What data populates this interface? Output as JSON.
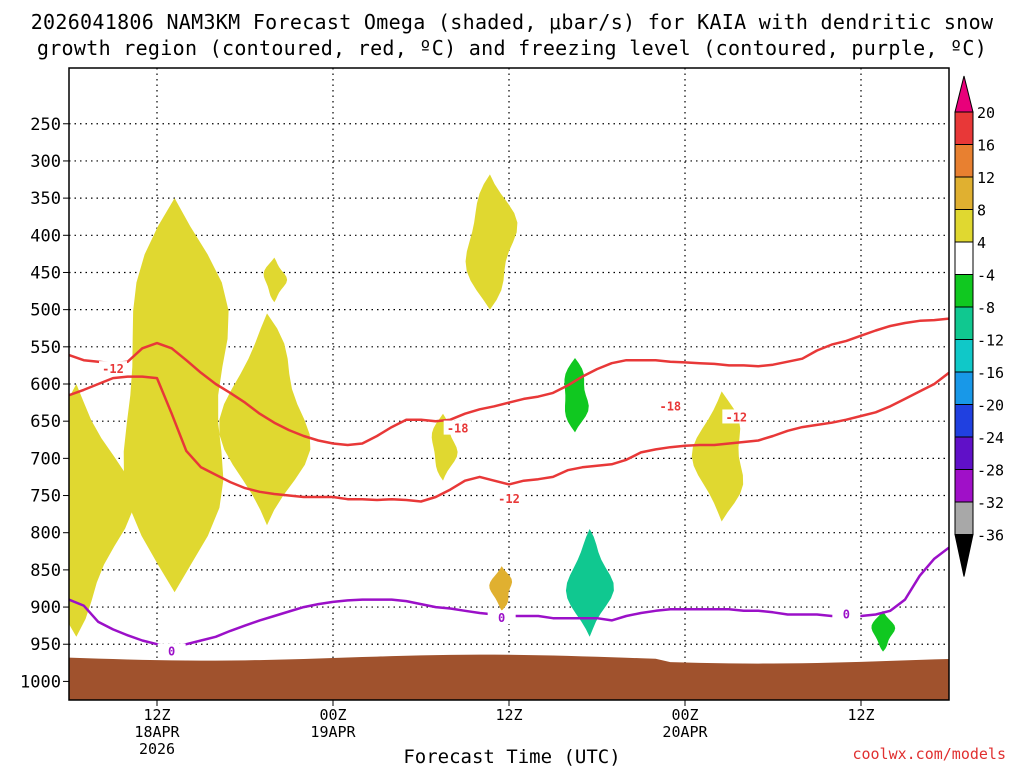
{
  "header": {
    "title_line1": "2026041806 NAM3KM Forecast Omega (shaded, μbar/s) for KAIA with dendritic snow",
    "title_line2": "growth region (contoured, red, ºC) and freezing level (contoured, purple, ºC)"
  },
  "footer": {
    "xlabel": "Forecast Time (UTC)",
    "credit": "coolwx.com/models"
  },
  "chart_data": {
    "type": "time-height cross section",
    "station": "KAIA",
    "model": "NAM3KM",
    "init": "2026041806",
    "x_axis": {
      "unit": "forecast hour",
      "range": [
        0,
        60
      ],
      "ticks": [
        {
          "hour": 6,
          "lines": [
            "12Z",
            "18APR",
            "2026"
          ]
        },
        {
          "hour": 18,
          "lines": [
            "00Z",
            "19APR"
          ]
        },
        {
          "hour": 30,
          "lines": [
            "12Z"
          ]
        },
        {
          "hour": 42,
          "lines": [
            "00Z",
            "20APR"
          ]
        },
        {
          "hour": 54,
          "lines": [
            "12Z"
          ]
        }
      ]
    },
    "y_axis": {
      "unit": "hPa",
      "range": [
        1025,
        175
      ],
      "ticks": [
        250,
        300,
        350,
        400,
        450,
        500,
        550,
        600,
        650,
        700,
        750,
        800,
        850,
        900,
        950,
        1000
      ]
    },
    "colorbar": {
      "levels": [
        20,
        16,
        12,
        8,
        4,
        -4,
        -8,
        -12,
        -16,
        -20,
        -24,
        -28,
        -32,
        -36
      ],
      "colors": [
        "#e8007a",
        "#e83838",
        "#e88030",
        "#e0b030",
        "#e0d830",
        "#ffffff",
        "#10c820",
        "#10c890",
        "#10c8c8",
        "#1898e8",
        "#2040e0",
        "#6010c8",
        "#a010c8",
        "#a8a8a8",
        "#000000"
      ]
    },
    "contours": [
      {
        "name": "-12",
        "color": "#e83838",
        "label_positions": [
          [
            3.0,
            580
          ],
          [
            30.0,
            755
          ],
          [
            45.5,
            645
          ]
        ],
        "points": [
          [
            0,
            561
          ],
          [
            1,
            568
          ],
          [
            2,
            570
          ],
          [
            3,
            572
          ],
          [
            4,
            570
          ],
          [
            5,
            552
          ],
          [
            6,
            545
          ],
          [
            7,
            552
          ],
          [
            8,
            568
          ],
          [
            9,
            585
          ],
          [
            10,
            600
          ],
          [
            11,
            612
          ],
          [
            12,
            625
          ],
          [
            13,
            640
          ],
          [
            14,
            652
          ],
          [
            15,
            662
          ],
          [
            16,
            670
          ],
          [
            17,
            676
          ],
          [
            18,
            680
          ],
          [
            19,
            682
          ],
          [
            20,
            680
          ],
          [
            21,
            670
          ],
          [
            22,
            658
          ],
          [
            23,
            648
          ],
          [
            24,
            648
          ],
          [
            25,
            650
          ],
          [
            26,
            648
          ],
          [
            27,
            640
          ],
          [
            28,
            634
          ],
          [
            29,
            630
          ],
          [
            30,
            625
          ],
          [
            31,
            620
          ],
          [
            32,
            617
          ],
          [
            33,
            612
          ],
          [
            34,
            602
          ],
          [
            35,
            590
          ],
          [
            36,
            580
          ],
          [
            37,
            572
          ],
          [
            38,
            568
          ],
          [
            39,
            568
          ],
          [
            40,
            568
          ],
          [
            41,
            570
          ],
          [
            42,
            571
          ],
          [
            43,
            572
          ],
          [
            44,
            573
          ],
          [
            45,
            575
          ],
          [
            46,
            575
          ],
          [
            47,
            576
          ],
          [
            48,
            574
          ],
          [
            49,
            570
          ],
          [
            50,
            566
          ],
          [
            51,
            555
          ],
          [
            52,
            547
          ],
          [
            53,
            542
          ],
          [
            54,
            535
          ],
          [
            55,
            528
          ],
          [
            56,
            522
          ],
          [
            57,
            518
          ],
          [
            58,
            515
          ],
          [
            59,
            514
          ],
          [
            60,
            512
          ]
        ]
      },
      {
        "name": "-18",
        "color": "#e83838",
        "label_positions": [
          [
            26.5,
            660
          ],
          [
            41.0,
            630
          ]
        ],
        "points": [
          [
            0,
            615
          ],
          [
            1,
            608
          ],
          [
            2,
            600
          ],
          [
            3,
            592
          ],
          [
            4,
            590
          ],
          [
            5,
            590
          ],
          [
            6,
            592
          ],
          [
            7,
            640
          ],
          [
            8,
            690
          ],
          [
            9,
            712
          ],
          [
            10,
            722
          ],
          [
            11,
            732
          ],
          [
            12,
            740
          ],
          [
            13,
            745
          ],
          [
            14,
            748
          ],
          [
            15,
            750
          ],
          [
            16,
            752
          ],
          [
            17,
            752
          ],
          [
            18,
            752
          ],
          [
            19,
            755
          ],
          [
            20,
            755
          ],
          [
            21,
            756
          ],
          [
            22,
            755
          ],
          [
            23,
            756
          ],
          [
            24,
            758
          ],
          [
            25,
            752
          ],
          [
            26,
            742
          ],
          [
            27,
            730
          ],
          [
            28,
            725
          ],
          [
            29,
            730
          ],
          [
            30,
            735
          ],
          [
            31,
            730
          ],
          [
            32,
            728
          ],
          [
            33,
            725
          ],
          [
            34,
            716
          ],
          [
            35,
            712
          ],
          [
            36,
            710
          ],
          [
            37,
            708
          ],
          [
            38,
            702
          ],
          [
            39,
            692
          ],
          [
            40,
            688
          ],
          [
            41,
            685
          ],
          [
            42,
            683
          ],
          [
            43,
            682
          ],
          [
            44,
            682
          ],
          [
            45,
            680
          ],
          [
            46,
            678
          ],
          [
            47,
            676
          ],
          [
            48,
            670
          ],
          [
            49,
            663
          ],
          [
            50,
            658
          ],
          [
            51,
            655
          ],
          [
            52,
            652
          ],
          [
            53,
            648
          ],
          [
            54,
            643
          ],
          [
            55,
            638
          ],
          [
            56,
            630
          ],
          [
            57,
            620
          ],
          [
            58,
            610
          ],
          [
            59,
            600
          ],
          [
            60,
            585
          ]
        ]
      },
      {
        "name": "0",
        "color": "#9b10c8",
        "label_positions": [
          [
            7.0,
            960
          ],
          [
            29.5,
            915
          ],
          [
            53.0,
            910
          ]
        ],
        "points": [
          [
            0,
            890
          ],
          [
            1,
            898
          ],
          [
            2,
            920
          ],
          [
            3,
            930
          ],
          [
            4,
            938
          ],
          [
            5,
            945
          ],
          [
            6,
            950
          ],
          [
            7,
            955
          ],
          [
            8,
            950
          ],
          [
            9,
            945
          ],
          [
            10,
            940
          ],
          [
            11,
            932
          ],
          [
            12,
            925
          ],
          [
            13,
            918
          ],
          [
            14,
            912
          ],
          [
            15,
            906
          ],
          [
            16,
            900
          ],
          [
            17,
            896
          ],
          [
            18,
            893
          ],
          [
            19,
            891
          ],
          [
            20,
            890
          ],
          [
            21,
            890
          ],
          [
            22,
            890
          ],
          [
            23,
            892
          ],
          [
            24,
            896
          ],
          [
            25,
            900
          ],
          [
            26,
            902
          ],
          [
            27,
            905
          ],
          [
            28,
            908
          ],
          [
            29,
            910
          ],
          [
            30,
            912
          ],
          [
            31,
            912
          ],
          [
            32,
            912
          ],
          [
            33,
            915
          ],
          [
            34,
            915
          ],
          [
            35,
            915
          ],
          [
            36,
            915
          ],
          [
            37,
            918
          ],
          [
            38,
            912
          ],
          [
            39,
            908
          ],
          [
            40,
            905
          ],
          [
            41,
            903
          ],
          [
            42,
            903
          ],
          [
            43,
            903
          ],
          [
            44,
            903
          ],
          [
            45,
            903
          ],
          [
            46,
            905
          ],
          [
            47,
            905
          ],
          [
            48,
            907
          ],
          [
            49,
            910
          ],
          [
            50,
            910
          ],
          [
            51,
            910
          ],
          [
            52,
            912
          ],
          [
            53,
            912
          ],
          [
            54,
            912
          ],
          [
            55,
            910
          ],
          [
            56,
            905
          ],
          [
            57,
            890
          ],
          [
            58,
            858
          ],
          [
            59,
            835
          ],
          [
            60,
            820
          ]
        ]
      }
    ],
    "shaded_regions": [
      {
        "label": "4 to 8",
        "color": "#e0d830",
        "hour": 7.2,
        "p_top": 350,
        "p_bottom": 880
      },
      {
        "label": "4 to 8",
        "color": "#e0d830",
        "hour": 13.5,
        "p_top": 505,
        "p_bottom": 790
      },
      {
        "label": "4 to 8",
        "color": "#e0d830",
        "hour": 14.0,
        "p_top": 430,
        "p_bottom": 490
      },
      {
        "label": "4 to 8",
        "color": "#e0d830",
        "hour": 28.7,
        "p_top": 318,
        "p_bottom": 500
      },
      {
        "label": "4 to 8",
        "color": "#e0d830",
        "hour": 44.5,
        "p_top": 610,
        "p_bottom": 785
      },
      {
        "label": "4 to 8",
        "color": "#e0d830",
        "hour": 25.5,
        "p_top": 640,
        "p_bottom": 730
      },
      {
        "label": "4 to 8",
        "color": "#e0d830",
        "hour": 0.5,
        "p_top": 600,
        "p_bottom": 940
      },
      {
        "label": "8 to 12",
        "color": "#e0b030",
        "hour": 29.5,
        "p_top": 845,
        "p_bottom": 905
      },
      {
        "label": "-4 to -8",
        "color": "#10c820",
        "hour": 34.5,
        "p_top": 565,
        "p_bottom": 665
      },
      {
        "label": "-8 to -12",
        "color": "#10c890",
        "hour": 35.5,
        "p_top": 795,
        "p_bottom": 940
      },
      {
        "label": "-4 to -8",
        "color": "#10c820",
        "hour": 55.5,
        "p_top": 905,
        "p_bottom": 960
      }
    ]
  }
}
